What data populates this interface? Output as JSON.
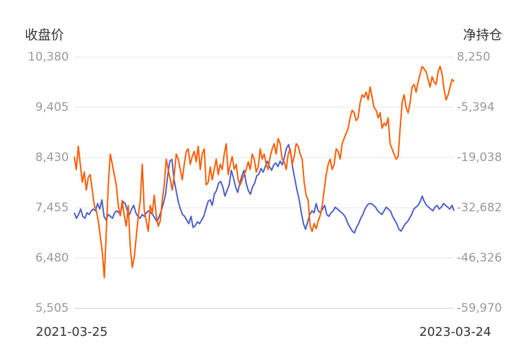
{
  "chart_data": {
    "type": "line",
    "left_axis": {
      "title": "收盘价",
      "ticks": [
        "10,380",
        "9,405",
        "8,430",
        "7,455",
        "6,480",
        "5,505"
      ],
      "range": [
        5505,
        10380
      ]
    },
    "right_axis": {
      "title": "净持仓",
      "ticks": [
        "8,250",
        "-5,394",
        "-19,038",
        "-32,682",
        "-46,326",
        "-59,970"
      ],
      "range": [
        -59970,
        8250
      ]
    },
    "x_labels": {
      "start": "2021-03-25",
      "end": "2023-03-24"
    },
    "grid": true,
    "series": [
      {
        "axis": "left",
        "color": "#ff5b00",
        "values": [
          8450,
          8200,
          8650,
          8300,
          7950,
          8150,
          7800,
          8050,
          8100,
          7800,
          7500,
          7400,
          7200,
          6900,
          6600,
          6100,
          7000,
          7900,
          8500,
          8300,
          8100,
          7900,
          7500,
          7300,
          7600,
          7300,
          7100,
          7500,
          6700,
          6300,
          6500,
          6900,
          7300,
          7600,
          8300,
          7400,
          7200,
          7000,
          7500,
          7350,
          7700,
          7300,
          7100,
          7200,
          7600,
          7900,
          8400,
          8200,
          8000,
          7800,
          8100,
          8500,
          8400,
          8200,
          8000,
          8300,
          8550,
          8600,
          8300,
          8450,
          8550,
          8350,
          8650,
          8200,
          8500,
          8600,
          7900,
          7950,
          8250,
          8000,
          8200,
          8400,
          8100,
          8300,
          8200,
          8500,
          8700,
          8100,
          8300,
          8450,
          8200,
          8300,
          8000,
          7900,
          8000,
          8100,
          8200,
          8350,
          8200,
          8500,
          8400,
          8150,
          8250,
          8600,
          8400,
          8500,
          8300,
          8200,
          8450,
          8600,
          8700,
          8500,
          8800,
          8700,
          8400,
          8350,
          8200,
          8500,
          8600,
          8300,
          8450,
          8700,
          8650,
          8500,
          8400,
          7950,
          7700,
          7600,
          7100,
          7000,
          7150,
          7050,
          7200,
          7300,
          7500,
          7800,
          8100,
          8300,
          8400,
          8200,
          8300,
          8600,
          8550,
          8400,
          8700,
          8800,
          8900,
          9000,
          9200,
          9350,
          9300,
          9150,
          9200,
          9500,
          9650,
          9600,
          9700,
          9550,
          9800,
          9600,
          9400,
          9350,
          9200,
          9300,
          9000,
          9100,
          9050,
          9200,
          8700,
          8600,
          8500,
          8400,
          8450,
          9000,
          9500,
          9650,
          9400,
          9300,
          9500,
          9800,
          9850,
          9700,
          9900,
          10050,
          10200,
          10150,
          10100,
          9950,
          9800,
          10000,
          9900,
          9850,
          10100,
          10200,
          10050,
          9750,
          9550,
          9650,
          9800,
          9950,
          9900
        ]
      },
      {
        "axis": "right",
        "color": "#4a5ec8",
        "values": [
          -34000,
          -35500,
          -34500,
          -33000,
          -35000,
          -35500,
          -34000,
          -34500,
          -33500,
          -33000,
          -33500,
          -31500,
          -33000,
          -30500,
          -35000,
          -36000,
          -34500,
          -35000,
          -35500,
          -34000,
          -33500,
          -34000,
          -33500,
          -31000,
          -31500,
          -33500,
          -34500,
          -33000,
          -32000,
          -34000,
          -35000,
          -35500,
          -34500,
          -35000,
          -34000,
          -33500,
          -34000,
          -34500,
          -35500,
          -36500,
          -35000,
          -33500,
          -31500,
          -29000,
          -24000,
          -20000,
          -19500,
          -25000,
          -28000,
          -31000,
          -33000,
          -34500,
          -35000,
          -36000,
          -37000,
          -35000,
          -38000,
          -37500,
          -36500,
          -37000,
          -36000,
          -35000,
          -33000,
          -31000,
          -30500,
          -32000,
          -29000,
          -28000,
          -26000,
          -25500,
          -27000,
          -29500,
          -28000,
          -26500,
          -22500,
          -24500,
          -27000,
          -28500,
          -26000,
          -24000,
          -22500,
          -26000,
          -28000,
          -29000,
          -27000,
          -26000,
          -24000,
          -23500,
          -22000,
          -23000,
          -21500,
          -20000,
          -21500,
          -22500,
          -21000,
          -20500,
          -21500,
          -20000,
          -21000,
          -19000,
          -16500,
          -15500,
          -18000,
          -22000,
          -25000,
          -28000,
          -30500,
          -34000,
          -37000,
          -38500,
          -36500,
          -34500,
          -33500,
          -34000,
          -31500,
          -33500,
          -34000,
          -33000,
          -32000,
          -34500,
          -35000,
          -34000,
          -33500,
          -32500,
          -33000,
          -33500,
          -34000,
          -34500,
          -35500,
          -37000,
          -38000,
          -39000,
          -39500,
          -38000,
          -37000,
          -35500,
          -34500,
          -33000,
          -32000,
          -31500,
          -31500,
          -32000,
          -32500,
          -33500,
          -34000,
          -34500,
          -33500,
          -32500,
          -33000,
          -33500,
          -35000,
          -36000,
          -37000,
          -38500,
          -39000,
          -38000,
          -37000,
          -36500,
          -35500,
          -34500,
          -33000,
          -32500,
          -32000,
          -31000,
          -29500,
          -31000,
          -32000,
          -32500,
          -33000,
          -33500,
          -32500,
          -32000,
          -33000,
          -32500,
          -31500,
          -32000,
          -32500,
          -33000,
          -32000,
          -33500
        ]
      }
    ]
  }
}
